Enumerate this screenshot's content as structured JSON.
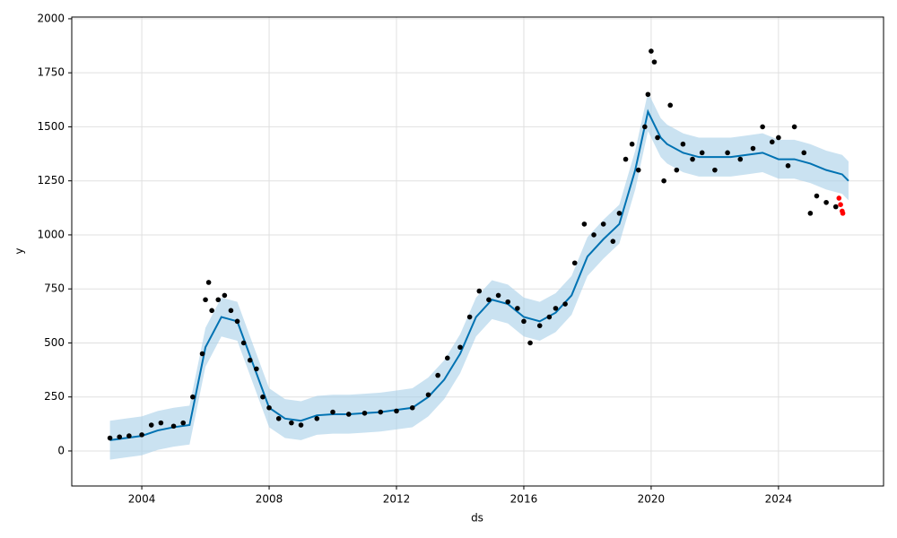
{
  "chart_data": {
    "type": "line",
    "xlabel": "ds",
    "ylabel": "y",
    "xlim": [
      2001.8,
      2027.3
    ],
    "ylim": [
      -162,
      2008
    ],
    "xticks": [
      2004,
      2008,
      2012,
      2016,
      2020,
      2024
    ],
    "yticks": [
      0,
      250,
      500,
      750,
      1000,
      1250,
      1500,
      1750,
      2000
    ],
    "grid": true,
    "series": [
      {
        "kind": "band",
        "color": "#a6cfe8",
        "x": [
          2003.0,
          2003.5,
          2004.0,
          2004.5,
          2005.0,
          2005.5,
          2006.0,
          2006.5,
          2007.0,
          2007.5,
          2008.0,
          2008.5,
          2009.0,
          2009.5,
          2010,
          2010.5,
          2011,
          2011.5,
          2012,
          2012.5,
          2013,
          2013.5,
          2014,
          2014.5,
          2015,
          2015.5,
          2016,
          2016.5,
          2017,
          2017.5,
          2018,
          2018.5,
          2019,
          2019.5,
          2019.9,
          2020.3,
          2020.5,
          2021,
          2021.5,
          2022,
          2022.5,
          2023,
          2023.5,
          2024,
          2024.5,
          2025,
          2025.5,
          2026,
          2026.2
        ],
        "lower": [
          -40,
          -30,
          -20,
          5,
          20,
          30,
          390,
          530,
          510,
          310,
          110,
          60,
          50,
          75,
          80,
          80,
          85,
          90,
          100,
          110,
          160,
          240,
          360,
          530,
          610,
          590,
          530,
          510,
          550,
          630,
          810,
          890,
          960,
          1210,
          1480,
          1360,
          1330,
          1290,
          1270,
          1270,
          1270,
          1280,
          1290,
          1260,
          1260,
          1240,
          1210,
          1190,
          1160
        ],
        "upper": [
          140,
          150,
          160,
          185,
          200,
          210,
          570,
          710,
          690,
          490,
          290,
          240,
          230,
          255,
          260,
          260,
          265,
          270,
          280,
          290,
          340,
          420,
          540,
          710,
          790,
          770,
          710,
          690,
          730,
          810,
          990,
          1070,
          1140,
          1390,
          1660,
          1540,
          1510,
          1470,
          1450,
          1450,
          1450,
          1460,
          1470,
          1440,
          1440,
          1420,
          1390,
          1370,
          1340
        ]
      },
      {
        "kind": "line",
        "color": "#0072b2",
        "x": [
          2003.0,
          2003.5,
          2004.0,
          2004.5,
          2005.0,
          2005.5,
          2006.0,
          2006.5,
          2007.0,
          2007.5,
          2008.0,
          2008.5,
          2009.0,
          2009.5,
          2010,
          2010.5,
          2011,
          2011.5,
          2012,
          2012.5,
          2013,
          2013.5,
          2014,
          2014.5,
          2015,
          2015.5,
          2016,
          2016.5,
          2017,
          2017.5,
          2018,
          2018.5,
          2019,
          2019.5,
          2019.9,
          2020.3,
          2020.5,
          2021,
          2021.5,
          2022,
          2022.5,
          2023,
          2023.5,
          2024,
          2024.5,
          2025,
          2025.5,
          2026,
          2026.2
        ],
        "values": [
          50,
          60,
          70,
          95,
          110,
          120,
          480,
          620,
          600,
          400,
          200,
          150,
          140,
          165,
          170,
          170,
          175,
          180,
          190,
          200,
          250,
          330,
          450,
          620,
          700,
          680,
          620,
          600,
          640,
          720,
          900,
          980,
          1050,
          1300,
          1570,
          1450,
          1420,
          1380,
          1360,
          1360,
          1360,
          1370,
          1380,
          1350,
          1350,
          1330,
          1300,
          1280,
          1250
        ]
      },
      {
        "kind": "scatter",
        "color": "#000000",
        "x": [
          2003.0,
          2003.3,
          2003.6,
          2004.0,
          2004.3,
          2004.6,
          2005.0,
          2005.3,
          2005.6,
          2005.9,
          2006.0,
          2006.1,
          2006.2,
          2006.4,
          2006.6,
          2006.8,
          2007.0,
          2007.2,
          2007.4,
          2007.6,
          2007.8,
          2008.0,
          2008.3,
          2008.7,
          2009.0,
          2009.5,
          2010.0,
          2010.5,
          2011.0,
          2011.5,
          2012.0,
          2012.5,
          2013.0,
          2013.3,
          2013.6,
          2014.0,
          2014.3,
          2014.6,
          2014.9,
          2015.2,
          2015.5,
          2015.8,
          2016.0,
          2016.2,
          2016.5,
          2016.8,
          2017.0,
          2017.3,
          2017.6,
          2017.9,
          2018.2,
          2018.5,
          2018.8,
          2019.0,
          2019.2,
          2019.4,
          2019.6,
          2019.8,
          2019.9,
          2020.0,
          2020.1,
          2020.2,
          2020.4,
          2020.6,
          2020.8,
          2021.0,
          2021.3,
          2021.6,
          2022.0,
          2022.4,
          2022.8,
          2023.2,
          2023.5,
          2023.8,
          2024.0,
          2024.3,
          2024.5,
          2024.8,
          2025.0,
          2025.2,
          2025.5,
          2025.8
        ],
        "values": [
          60,
          65,
          70,
          75,
          120,
          130,
          115,
          130,
          250,
          450,
          700,
          780,
          650,
          700,
          720,
          650,
          600,
          500,
          420,
          380,
          250,
          200,
          150,
          130,
          120,
          150,
          180,
          170,
          175,
          180,
          185,
          200,
          260,
          350,
          430,
          480,
          620,
          740,
          700,
          720,
          690,
          660,
          600,
          500,
          580,
          620,
          660,
          680,
          870,
          1050,
          1000,
          1050,
          970,
          1100,
          1350,
          1420,
          1300,
          1500,
          1650,
          1850,
          1800,
          1450,
          1250,
          1600,
          1300,
          1420,
          1350,
          1380,
          1300,
          1380,
          1350,
          1400,
          1500,
          1430,
          1450,
          1320,
          1500,
          1380,
          1100,
          1180,
          1150,
          1130
        ]
      },
      {
        "kind": "scatter",
        "color": "#ff0000",
        "x": [
          2025.9,
          2025.95,
          2026.0,
          2026.02
        ],
        "values": [
          1170,
          1140,
          1110,
          1100
        ]
      }
    ]
  }
}
